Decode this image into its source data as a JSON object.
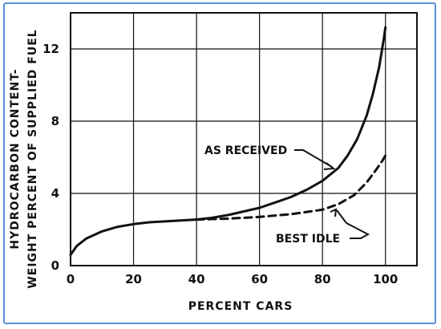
{
  "chart_data": {
    "type": "line",
    "title": "",
    "xlabel": "PERCENT CARS",
    "ylabel_lines": [
      "HYDROCARBON CONTENT-",
      "WEIGHT PERCENT OF SUPPLIED FUEL"
    ],
    "xlim": [
      0,
      110
    ],
    "ylim": [
      0,
      14
    ],
    "x_ticks": [
      0,
      20,
      40,
      60,
      80,
      100
    ],
    "y_ticks": [
      0,
      4,
      8,
      12
    ],
    "grid": true,
    "legend": "none",
    "series": [
      {
        "name": "AS RECEIVED",
        "style": "solid",
        "color": "#111111",
        "points": [
          [
            0,
            0.6
          ],
          [
            2,
            1.1
          ],
          [
            5,
            1.5
          ],
          [
            10,
            1.9
          ],
          [
            15,
            2.15
          ],
          [
            20,
            2.3
          ],
          [
            25,
            2.4
          ],
          [
            30,
            2.45
          ],
          [
            35,
            2.5
          ],
          [
            40,
            2.55
          ],
          [
            45,
            2.65
          ],
          [
            50,
            2.8
          ],
          [
            55,
            3.0
          ],
          [
            60,
            3.2
          ],
          [
            65,
            3.5
          ],
          [
            70,
            3.8
          ],
          [
            75,
            4.2
          ],
          [
            80,
            4.7
          ],
          [
            85,
            5.4
          ],
          [
            88,
            6.1
          ],
          [
            91,
            7.0
          ],
          [
            94,
            8.3
          ],
          [
            96,
            9.5
          ],
          [
            98,
            11.0
          ],
          [
            99.5,
            12.6
          ],
          [
            100,
            13.2
          ]
        ]
      },
      {
        "name": "BEST IDLE",
        "style": "dashed",
        "color": "#111111",
        "points": [
          [
            40,
            2.55
          ],
          [
            50,
            2.6
          ],
          [
            60,
            2.7
          ],
          [
            70,
            2.85
          ],
          [
            80,
            3.1
          ],
          [
            85,
            3.4
          ],
          [
            90,
            3.9
          ],
          [
            94,
            4.6
          ],
          [
            97,
            5.3
          ],
          [
            99,
            5.8
          ],
          [
            100,
            6.1
          ]
        ]
      }
    ],
    "annotations": [
      {
        "text": "AS RECEIVED",
        "series": "AS RECEIVED"
      },
      {
        "text": "BEST IDLE",
        "series": "BEST IDLE"
      }
    ]
  }
}
